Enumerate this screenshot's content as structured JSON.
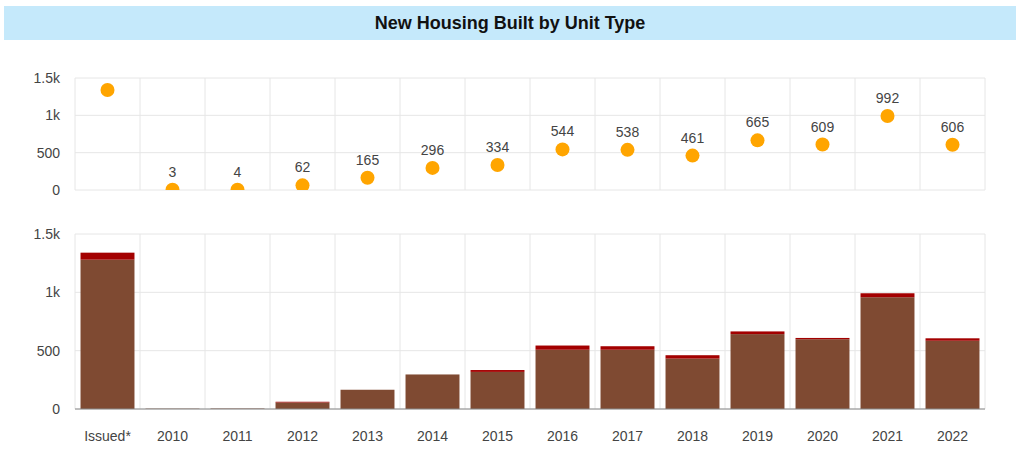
{
  "chart_data": [
    {
      "type": "scatter",
      "title": "New Housing Built by Unit Type",
      "categories": [
        "Issued*",
        "2010",
        "2011",
        "2012",
        "2013",
        "2014",
        "2015",
        "2016",
        "2017",
        "2018",
        "2019",
        "2020",
        "2021",
        "2022"
      ],
      "values": [
        1340,
        3,
        4,
        62,
        165,
        296,
        334,
        544,
        538,
        461,
        665,
        609,
        992,
        606
      ],
      "value_labels": [
        null,
        "3",
        "4",
        "62",
        "165",
        "296",
        "334",
        "544",
        "538",
        "461",
        "665",
        "609",
        "992",
        "606"
      ],
      "color": "#ffa500",
      "marker": "circle",
      "data_labels": true,
      "ylim": [
        0,
        1500
      ],
      "yticks": [
        0,
        500,
        {
          "value": 1000,
          "label": "1k"
        },
        {
          "value": 1500,
          "label": "1.5k"
        }
      ],
      "grid": true,
      "tick_labels": "y"
    },
    {
      "type": "bar",
      "stacked": true,
      "categories": [
        "Issued*",
        "2010",
        "2011",
        "2012",
        "2013",
        "2014",
        "2015",
        "2016",
        "2017",
        "2018",
        "2019",
        "2020",
        "2021",
        "2022"
      ],
      "series": [
        {
          "color": "#7f4a32",
          "values": [
            1280,
            3,
            4,
            56,
            165,
            296,
            318,
            508,
            508,
            432,
            642,
            598,
            958,
            585
          ]
        },
        {
          "color": "#a30000",
          "values": [
            60,
            0,
            0,
            6,
            0,
            0,
            16,
            36,
            30,
            29,
            23,
            11,
            34,
            21
          ]
        }
      ],
      "ylim": [
        0,
        1500
      ],
      "yticks": [
        0,
        500,
        {
          "value": 1000,
          "label": "1k"
        },
        {
          "value": 1500,
          "label": "1.5k"
        }
      ],
      "grid": true,
      "tick_labels": true
    }
  ]
}
